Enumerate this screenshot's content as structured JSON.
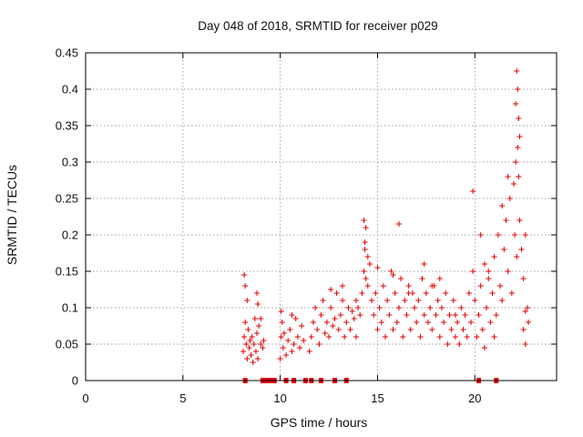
{
  "chart_data": {
    "type": "scatter",
    "title": "Day 048 of 2018, SRMTID for receiver p029",
    "xlabel": "GPS time / hours",
    "ylabel": "SRMTID / TECUs",
    "xlim": [
      0,
      24.2
    ],
    "ylim": [
      0,
      0.45
    ],
    "grid": true,
    "marker": "+",
    "marker_color": "#e00000",
    "x_ticks": [
      0,
      5,
      10,
      15,
      20
    ],
    "x_tick_labels": [
      "0",
      "5",
      "10",
      "15",
      "20"
    ],
    "y_ticks": [
      0,
      0.05,
      0.1,
      0.15,
      0.2,
      0.25,
      0.3,
      0.35,
      0.4,
      0.45
    ],
    "y_tick_labels": [
      "0",
      "0.05",
      "0.1",
      "0.15",
      "0.2",
      "0.25",
      "0.3",
      "0.35",
      "0.4",
      "0.45"
    ],
    "series": [
      {
        "name": "SRMTID",
        "x": [
          8.1,
          8.15,
          8.2,
          8.25,
          8.3,
          8.35,
          8.4,
          8.45,
          8.5,
          8.55,
          8.6,
          8.65,
          8.7,
          8.75,
          8.8,
          8.85,
          8.9,
          9.0,
          9.1,
          9.15,
          8.15,
          8.2,
          8.3,
          8.8,
          8.85,
          9.0,
          10.0,
          10.05,
          10.1,
          10.15,
          10.2,
          10.3,
          10.4,
          10.5,
          10.6,
          10.7,
          10.8,
          10.9,
          11.0,
          11.1,
          11.2,
          10.05,
          10.6,
          11.5,
          11.6,
          11.7,
          11.8,
          11.9,
          12.0,
          12.1,
          12.2,
          12.3,
          12.4,
          12.5,
          12.6,
          12.7,
          12.8,
          12.9,
          13.0,
          13.1,
          13.2,
          13.3,
          13.4,
          13.5,
          13.6,
          13.7,
          13.8,
          13.9,
          14.0,
          14.1,
          14.2,
          14.3,
          14.35,
          14.4,
          14.5,
          14.6,
          14.7,
          14.8,
          14.9,
          15.0,
          15.1,
          15.2,
          15.3,
          15.4,
          15.5,
          15.6,
          15.7,
          15.8,
          15.9,
          16.0,
          16.1,
          16.2,
          16.3,
          16.4,
          16.5,
          16.6,
          16.7,
          16.8,
          16.9,
          17.0,
          17.1,
          17.2,
          17.3,
          17.4,
          17.5,
          17.6,
          17.7,
          17.8,
          17.9,
          18.0,
          18.1,
          18.2,
          18.3,
          18.4,
          18.5,
          18.6,
          18.7,
          18.8,
          18.9,
          19.0,
          19.1,
          19.2,
          19.3,
          19.4,
          19.5,
          19.6,
          19.7,
          19.8,
          19.9,
          20.0,
          20.1,
          20.2,
          20.3,
          20.4,
          20.5,
          20.6,
          20.7,
          20.8,
          20.9,
          21.0,
          21.1,
          21.2,
          21.3,
          21.4,
          21.5,
          21.6,
          21.7,
          21.8,
          21.9,
          22.0,
          22.05,
          22.1,
          22.15,
          22.2,
          22.25,
          22.3,
          22.4,
          22.5,
          22.6,
          22.7,
          22.75,
          14.3,
          14.35,
          14.4,
          16.1,
          19.9,
          22.1,
          22.15,
          22.2,
          22.3,
          22.25,
          21.7,
          22.5,
          22.6,
          13.2,
          15.0,
          17.4,
          14.5,
          18.2,
          21.4,
          16.6,
          20.7,
          20.3,
          19.0,
          15.8,
          17.8,
          12.6,
          13.9,
          21.0,
          20.5,
          22.6
        ],
        "y": [
          0.04,
          0.06,
          0.08,
          0.05,
          0.03,
          0.07,
          0.045,
          0.055,
          0.035,
          0.06,
          0.025,
          0.05,
          0.085,
          0.04,
          0.065,
          0.03,
          0.075,
          0.05,
          0.045,
          0.055,
          0.145,
          0.13,
          0.11,
          0.12,
          0.105,
          0.085,
          0.03,
          0.06,
          0.08,
          0.045,
          0.065,
          0.035,
          0.055,
          0.07,
          0.04,
          0.05,
          0.085,
          0.06,
          0.045,
          0.075,
          0.055,
          0.095,
          0.09,
          0.04,
          0.06,
          0.08,
          0.1,
          0.07,
          0.05,
          0.09,
          0.11,
          0.065,
          0.08,
          0.06,
          0.1,
          0.075,
          0.085,
          0.12,
          0.07,
          0.09,
          0.11,
          0.06,
          0.08,
          0.1,
          0.07,
          0.095,
          0.085,
          0.06,
          0.1,
          0.09,
          0.12,
          0.15,
          0.18,
          0.14,
          0.13,
          0.16,
          0.11,
          0.09,
          0.12,
          0.07,
          0.1,
          0.08,
          0.13,
          0.06,
          0.11,
          0.09,
          0.15,
          0.07,
          0.12,
          0.08,
          0.1,
          0.14,
          0.06,
          0.11,
          0.09,
          0.13,
          0.07,
          0.12,
          0.1,
          0.08,
          0.11,
          0.06,
          0.14,
          0.09,
          0.12,
          0.08,
          0.1,
          0.07,
          0.13,
          0.09,
          0.11,
          0.06,
          0.1,
          0.08,
          0.12,
          0.05,
          0.09,
          0.07,
          0.11,
          0.06,
          0.08,
          0.05,
          0.1,
          0.07,
          0.09,
          0.06,
          0.12,
          0.08,
          0.15,
          0.11,
          0.06,
          0.09,
          0.13,
          0.07,
          0.16,
          0.1,
          0.14,
          0.08,
          0.12,
          0.17,
          0.09,
          0.2,
          0.13,
          0.11,
          0.18,
          0.22,
          0.15,
          0.25,
          0.12,
          0.27,
          0.2,
          0.3,
          0.17,
          0.32,
          0.28,
          0.22,
          0.18,
          0.14,
          0.2,
          0.1,
          0.08,
          0.22,
          0.19,
          0.21,
          0.215,
          0.26,
          0.38,
          0.425,
          0.4,
          0.335,
          0.36,
          0.28,
          0.07,
          0.05,
          0.13,
          0.155,
          0.16,
          0.17,
          0.14,
          0.24,
          0.12,
          0.15,
          0.2,
          0.09,
          0.145,
          0.13,
          0.125,
          0.11,
          0.06,
          0.045,
          0.095
        ]
      }
    ],
    "gap_markers_y": 0,
    "gap_markers_x": [
      8.2,
      9.1,
      9.3,
      9.5,
      9.7,
      10.3,
      10.7,
      11.3,
      11.6,
      12.1,
      12.8,
      13.4,
      20.2,
      21.1
    ]
  }
}
